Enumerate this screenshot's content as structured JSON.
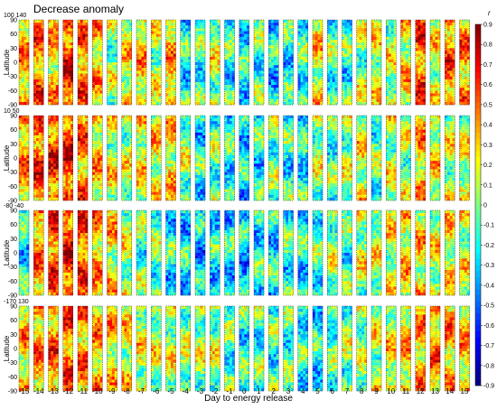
{
  "chart_data": {
    "type": "heatmap",
    "title": "Decrease anomaly",
    "xlabel": "Day to energy release",
    "ylabel": "Latitude",
    "days": [
      -15,
      -14,
      -13,
      -12,
      -11,
      -10,
      -9,
      -8,
      -7,
      -6,
      -5,
      -4,
      -3,
      -2,
      -1,
      0,
      1,
      2,
      3,
      4,
      5,
      6,
      7,
      8,
      9,
      10,
      11,
      12,
      13,
      14,
      15
    ],
    "yticks": [
      90,
      60,
      30,
      0,
      -30,
      -60,
      -90
    ],
    "ylim": [
      -90,
      90
    ],
    "colorbar": {
      "label": "r",
      "range": [
        -0.9,
        0.9
      ],
      "ticks": [
        0.9,
        0.8,
        0.7,
        0.6,
        0.5,
        0.4,
        0.3,
        0.2,
        0.1,
        0,
        -0.1,
        -0.2,
        -0.3,
        -0.4,
        -0.5,
        -0.6,
        -0.7,
        -0.8,
        -0.9
      ]
    },
    "panels": [
      {
        "longitude_range": "100 140",
        "r_mean_by_day": [
          0.35,
          0.45,
          0.3,
          0.6,
          0.45,
          0.3,
          0.05,
          0.2,
          0.3,
          0.1,
          0.35,
          -0.2,
          -0.1,
          0.1,
          -0.15,
          -0.2,
          -0.1,
          -0.25,
          -0.2,
          -0.15,
          0.2,
          -0.1,
          -0.15,
          0.05,
          0.15,
          0.1,
          0.25,
          0.5,
          0.15,
          0.45,
          0.4
        ]
      },
      {
        "longitude_range": "10 50",
        "r_mean_by_day": [
          0.4,
          0.55,
          0.55,
          0.6,
          0.45,
          0.3,
          0.15,
          0.1,
          0.2,
          0.2,
          0.25,
          0.05,
          -0.2,
          -0.05,
          -0.15,
          -0.25,
          -0.2,
          -0.05,
          -0.15,
          -0.2,
          0.05,
          -0.1,
          0.05,
          0.2,
          -0.05,
          0.1,
          0.05,
          0.3,
          0.2,
          0.1,
          0.1
        ]
      },
      {
        "longitude_range": "-80 -40",
        "r_mean_by_day": [
          -0.2,
          0.4,
          0.55,
          0.6,
          0.5,
          0.35,
          0.25,
          0.1,
          -0.05,
          -0.05,
          -0.2,
          -0.25,
          -0.3,
          -0.2,
          -0.25,
          -0.3,
          -0.2,
          -0.2,
          -0.15,
          -0.2,
          -0.1,
          0.05,
          -0.1,
          0.1,
          0.1,
          0.15,
          0.25,
          0.25,
          0.15,
          0.2,
          0.15
        ]
      },
      {
        "longitude_range": "-170 130",
        "r_mean_by_day": [
          0.3,
          0.4,
          0.45,
          0.5,
          0.4,
          0.35,
          0.25,
          0.2,
          0.15,
          0.1,
          0.1,
          0.05,
          0.05,
          0.05,
          -0.1,
          -0.15,
          -0.1,
          -0.1,
          -0.1,
          -0.15,
          -0.2,
          -0.1,
          0.0,
          0.05,
          0.1,
          0.2,
          0.3,
          0.35,
          0.4,
          0.35,
          0.3
        ]
      }
    ]
  }
}
